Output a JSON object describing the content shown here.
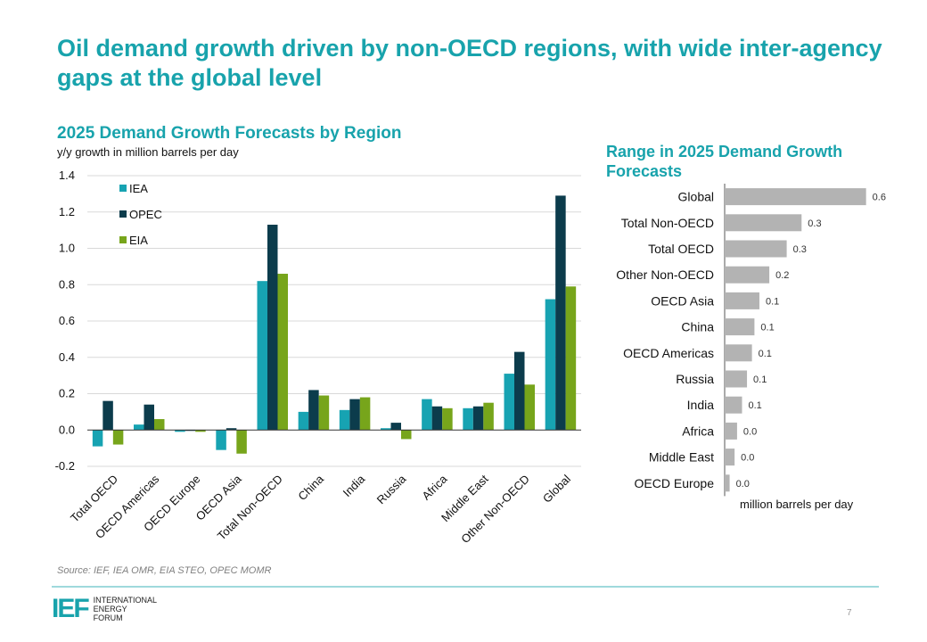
{
  "title": "Oil demand growth driven by non-OECD regions, with wide inter-agency gaps at the global level",
  "left": {
    "title": "2025 Demand Growth Forecasts by Region",
    "subtitle": "y/y growth in million barrels per day"
  },
  "right": {
    "title": "Range in 2025 Demand Growth Forecasts",
    "unit": "million barrels per day"
  },
  "source": "Source: IEF, IEA OMR, EIA STEO, OPEC MOMR",
  "footer": {
    "logo_mark": "IEF",
    "logo_lines": [
      "INTERNATIONAL",
      "ENERGY",
      "FORUM"
    ],
    "page_number": "7"
  },
  "colors": {
    "accent": "#18a3ac",
    "IEA": "#17a3b2",
    "OPEC": "#0c3c4c",
    "EIA": "#77a51b",
    "range_bar": "#b3b3b3"
  },
  "chart_data": [
    {
      "type": "bar",
      "title": "2025 Demand Growth Forecasts by Region",
      "ylabel": "y/y growth in million barrels per day",
      "ylim": [
        -0.2,
        1.4
      ],
      "yticks": [
        "1.4",
        "1.2",
        "1.0",
        "0.8",
        "0.6",
        "0.4",
        "0.2",
        "0.0",
        "-0.2"
      ],
      "categories": [
        "Total OECD",
        "OECD Americas",
        "OECD Europe",
        "OECD Asia",
        "Total Non-OECD",
        "China",
        "India",
        "Russia",
        "Africa",
        "Middle East",
        "Other Non-OECD",
        "Global"
      ],
      "series": [
        {
          "name": "IEA",
          "values": [
            -0.09,
            0.03,
            -0.01,
            -0.11,
            0.82,
            0.1,
            0.11,
            0.01,
            0.17,
            0.12,
            0.31,
            0.72
          ]
        },
        {
          "name": "OPEC",
          "values": [
            0.16,
            0.14,
            0.0,
            0.01,
            1.13,
            0.22,
            0.17,
            0.04,
            0.13,
            0.13,
            0.43,
            1.29
          ]
        },
        {
          "name": "EIA",
          "values": [
            -0.08,
            0.06,
            -0.01,
            -0.13,
            0.86,
            0.19,
            0.18,
            -0.05,
            0.12,
            0.15,
            0.25,
            0.79
          ]
        }
      ],
      "legend": "top-left"
    },
    {
      "type": "bar",
      "orientation": "horizontal",
      "title": "Range in 2025 Demand Growth Forecasts",
      "xlabel": "million barrels per day",
      "categories": [
        "Global",
        "Total Non-OECD",
        "Total OECD",
        "Other Non-OECD",
        "OECD Asia",
        "China",
        "OECD Americas",
        "Russia",
        "India",
        "Africa",
        "Middle East",
        "OECD Europe"
      ],
      "values": [
        0.57,
        0.31,
        0.25,
        0.18,
        0.14,
        0.12,
        0.11,
        0.09,
        0.07,
        0.05,
        0.04,
        0.02
      ],
      "labels": [
        "0.6",
        "0.3",
        "0.3",
        "0.2",
        "0.1",
        "0.1",
        "0.1",
        "0.1",
        "0.1",
        "0.0",
        "0.0",
        "0.0"
      ]
    }
  ]
}
